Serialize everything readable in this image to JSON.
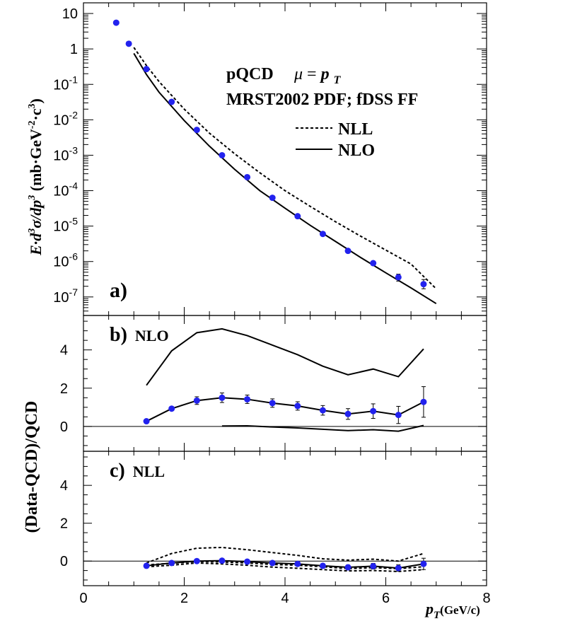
{
  "chart_data": [
    {
      "panel": "a",
      "type": "scatter",
      "panel_label": "a)",
      "ylabel": {
        "main": "E·d",
        "sup1": "3",
        "sigma": "σ/dp",
        "sup2": "3",
        "unit": " (mb·GeV",
        "sup3": "-2",
        "mid": "·c",
        "sup4": "3",
        "close": ")"
      },
      "yscale": "log",
      "ylim": [
        3e-08,
        20
      ],
      "xlim": [
        0,
        8
      ],
      "y_ticks": [
        {
          "value": 10,
          "base": "10",
          "exp": ""
        },
        {
          "value": 1,
          "base": "1",
          "exp": ""
        },
        {
          "value": 0.1,
          "base": "10",
          "exp": "-1"
        },
        {
          "value": 0.01,
          "base": "10",
          "exp": "-2"
        },
        {
          "value": 0.001,
          "base": "10",
          "exp": "-3"
        },
        {
          "value": 0.0001,
          "base": "10",
          "exp": "-4"
        },
        {
          "value": 1e-05,
          "base": "10",
          "exp": "-5"
        },
        {
          "value": 1e-06,
          "base": "10",
          "exp": "-6"
        },
        {
          "value": 1e-07,
          "base": "10",
          "exp": "-7"
        }
      ],
      "annotations": {
        "line1_a": "pQCD",
        "line1_mu": "μ",
        "line1_eq": " = ",
        "line1_p": "p",
        "line1_sub": "T",
        "line2": "MRST2002 PDF; fDSS FF",
        "legend_nll": "NLL",
        "legend_nlo": "NLO"
      },
      "data": {
        "x": [
          0.65,
          0.9,
          1.25,
          1.75,
          2.25,
          2.75,
          3.25,
          3.75,
          4.25,
          4.75,
          5.25,
          5.75,
          6.25,
          6.75
        ],
        "y": [
          5.5,
          1.4,
          0.27,
          0.032,
          0.0052,
          0.001,
          0.00024,
          6.3e-05,
          1.9e-05,
          6e-06,
          2e-06,
          9e-07,
          3.6e-07,
          2.3e-07
        ],
        "err_lo": [
          0,
          0,
          0,
          0,
          0,
          0,
          0,
          0,
          0,
          0,
          0,
          0,
          8e-08,
          6e-08
        ],
        "err_hi": [
          0,
          0,
          0,
          0,
          0,
          0,
          0,
          0,
          0,
          0,
          0,
          0,
          8e-08,
          8e-08
        ]
      },
      "series": [
        {
          "name": "NLL",
          "style": "dashed",
          "x": [
            1.0,
            1.25,
            1.5,
            2.0,
            2.5,
            3.0,
            3.5,
            4.0,
            4.5,
            5.0,
            5.5,
            6.0,
            6.5,
            7.0
          ],
          "y": [
            1.1,
            0.34,
            0.12,
            0.02,
            0.0042,
            0.0011,
            0.00032,
            0.0001,
            3.6e-05,
            1.33e-05,
            5.2e-06,
            2.1e-06,
            8.5e-07,
            1.7e-07
          ]
        },
        {
          "name": "NLO",
          "style": "solid",
          "x": [
            1.0,
            1.25,
            1.5,
            2.0,
            2.5,
            3.0,
            3.5,
            4.0,
            4.5,
            5.0,
            5.5,
            6.0,
            6.5,
            7.0
          ],
          "y": [
            0.75,
            0.19,
            0.06,
            0.0095,
            0.0018,
            0.0004,
            0.0001,
            3.2e-05,
            1.05e-05,
            3.7e-06,
            1.3e-06,
            4.8e-07,
            1.8e-07,
            6.5e-08
          ]
        }
      ]
    },
    {
      "panel": "b",
      "type": "line",
      "panel_label": "b)",
      "panel_label_tag": "NLO",
      "ylim": [
        -1.3,
        5.8
      ],
      "xlim": [
        0,
        8
      ],
      "y_ticks": [
        "0",
        "2",
        "4"
      ],
      "data": {
        "x": [
          1.25,
          1.75,
          2.25,
          2.75,
          3.25,
          3.75,
          4.25,
          4.75,
          5.25,
          5.75,
          6.25,
          6.75
        ],
        "y": [
          0.27,
          0.93,
          1.35,
          1.5,
          1.42,
          1.22,
          1.07,
          0.84,
          0.65,
          0.8,
          0.6,
          1.28
        ],
        "err": [
          0.05,
          0.1,
          0.2,
          0.25,
          0.22,
          0.22,
          0.22,
          0.25,
          0.28,
          0.38,
          0.45,
          0.8
        ]
      },
      "series": [
        {
          "name": "upper",
          "style": "solid",
          "x": [
            1.25,
            1.75,
            2.25,
            2.75,
            3.25,
            3.75,
            4.25,
            4.75,
            5.25,
            5.75,
            6.25,
            6.75
          ],
          "y": [
            2.15,
            3.95,
            4.9,
            5.1,
            4.75,
            4.25,
            3.75,
            3.15,
            2.7,
            3.0,
            2.6,
            4.05
          ]
        },
        {
          "name": "lower",
          "style": "solid",
          "x": [
            2.75,
            3.25,
            3.75,
            4.25,
            4.75,
            5.25,
            5.75,
            6.25,
            6.75
          ],
          "y": [
            0.02,
            0.03,
            -0.03,
            -0.08,
            -0.15,
            -0.22,
            -0.17,
            -0.25,
            0.05
          ]
        }
      ]
    },
    {
      "panel": "c",
      "type": "line",
      "panel_label": "c)",
      "panel_label_tag": "NLL",
      "ylim": [
        -1.3,
        5.8
      ],
      "xlim": [
        0,
        8
      ],
      "y_ticks": [
        "0",
        "2",
        "4"
      ],
      "x_ticks": [
        "0",
        "2",
        "4",
        "6",
        "8"
      ],
      "xlabel": {
        "p": "p",
        "sub": "T",
        "unit": "(GeV/c)"
      },
      "data": {
        "x": [
          1.25,
          1.75,
          2.25,
          2.75,
          3.25,
          3.75,
          4.25,
          4.75,
          5.25,
          5.75,
          6.25,
          6.75
        ],
        "y": [
          -0.25,
          -0.1,
          0.0,
          0.02,
          -0.03,
          -0.1,
          -0.15,
          -0.25,
          -0.33,
          -0.27,
          -0.37,
          -0.15
        ],
        "err": [
          0.03,
          0.05,
          0.08,
          0.1,
          0.1,
          0.1,
          0.1,
          0.1,
          0.12,
          0.15,
          0.17,
          0.3
        ]
      },
      "series": [
        {
          "name": "upper",
          "style": "dashed",
          "x": [
            1.25,
            1.75,
            2.25,
            2.75,
            3.25,
            3.75,
            4.25,
            4.75,
            5.25,
            5.75,
            6.25,
            6.75
          ],
          "y": [
            -0.1,
            0.4,
            0.68,
            0.72,
            0.6,
            0.45,
            0.3,
            0.12,
            0.05,
            0.1,
            0.0,
            0.4
          ]
        },
        {
          "name": "mid",
          "style": "dashed",
          "x": [
            1.25,
            1.75,
            2.25,
            2.75,
            3.25,
            3.75,
            4.25,
            4.75,
            5.25,
            5.75,
            6.25,
            6.75
          ],
          "y": [
            -0.2,
            -0.12,
            -0.02,
            -0.05,
            -0.1,
            -0.18,
            -0.22,
            -0.3,
            -0.4,
            -0.35,
            -0.4,
            -0.3
          ]
        },
        {
          "name": "low",
          "style": "dashed",
          "x": [
            1.25,
            1.75,
            2.25,
            2.75,
            3.25,
            3.75,
            4.25,
            4.75,
            5.25,
            5.75,
            6.25,
            6.75
          ],
          "y": [
            -0.3,
            -0.22,
            -0.1,
            -0.15,
            -0.22,
            -0.32,
            -0.38,
            -0.45,
            -0.52,
            -0.5,
            -0.55,
            -0.45
          ]
        }
      ]
    }
  ],
  "shared": {
    "ylabel_lower": "(Data-QCD)/QCD"
  }
}
